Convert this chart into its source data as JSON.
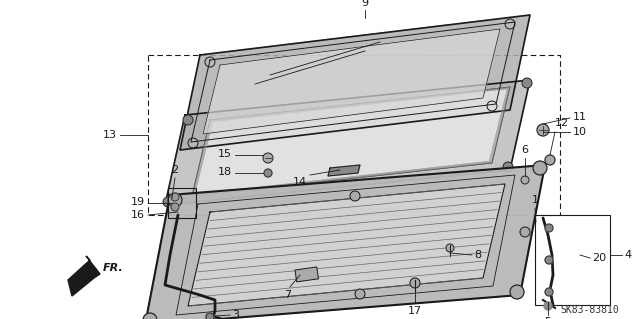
{
  "bg_color": "#ffffff",
  "line_color": "#1a1a1a",
  "part_number": "SK83-83810",
  "figsize": [
    6.4,
    3.19
  ],
  "dpi": 100
}
